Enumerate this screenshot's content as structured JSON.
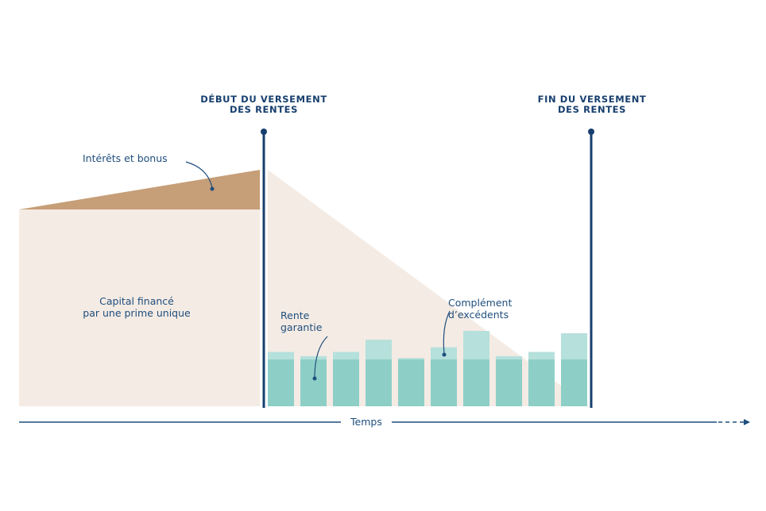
{
  "markers": {
    "start": "DÉBUT DU VERSEMENT\nDES RENTES",
    "end": "FIN DU VERSEMENT\nDES RENTES"
  },
  "labels": {
    "interest": "Intérêts et bonus",
    "capital": "Capital financé\npar une prime unique",
    "guaranteed": "Rente\ngarantie",
    "surplus": "Complément\nd’excédents",
    "time": "Temps"
  },
  "bars": {
    "guaranteed": 1,
    "surplus": [
      0.16,
      0.07,
      0.16,
      0.42,
      0.03,
      0.26,
      0.61,
      0.07,
      0.16,
      0.56
    ]
  },
  "colors": {
    "capital_area": "#f4ebe4",
    "interest_area": "#c69e77",
    "guaranteed_bar": "#8dcfc7",
    "surplus_bar": "#b5e0db",
    "marker_line": "#173f6e",
    "text": "#1f4e7d"
  }
}
